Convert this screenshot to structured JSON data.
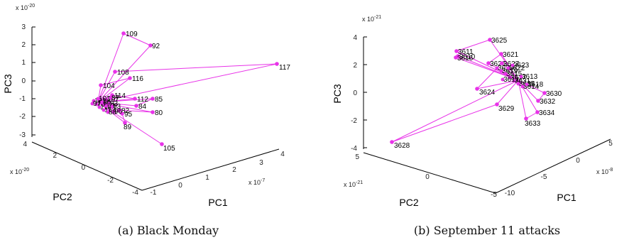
{
  "accent_color": "#e833e8",
  "chart_data": [
    {
      "type": "scatter",
      "projection": "3d",
      "caption": "(a) Black Monday",
      "xlabel": "PC1",
      "ylabel": "PC2",
      "zlabel": "PC3",
      "x_exponent_label": "x 10",
      "x_exponent_sup": "-7",
      "y_exponent_label": "x 10",
      "y_exponent_sup": "-20",
      "z_exponent_label": "x 10",
      "z_exponent_sup": "-20",
      "x_ticks": [
        "-1",
        "0",
        "1",
        "2",
        "3",
        "4"
      ],
      "y_ticks": [
        "-4",
        "-2",
        "0",
        "2",
        "4"
      ],
      "z_ticks": [
        "3",
        "2",
        "1",
        "0",
        "-1",
        "-2",
        "-3"
      ],
      "hub": "cluster",
      "points": [
        {
          "label": "109"
        },
        {
          "label": "92"
        },
        {
          "label": "117"
        },
        {
          "label": "108"
        },
        {
          "label": "116"
        },
        {
          "label": "104"
        },
        {
          "label": "114"
        },
        {
          "label": "112"
        },
        {
          "label": "85"
        },
        {
          "label": "84"
        },
        {
          "label": "82"
        },
        {
          "label": "80"
        },
        {
          "label": "95"
        },
        {
          "label": "89"
        },
        {
          "label": "105"
        }
      ],
      "cluster_labels": [
        "101",
        "106",
        "110",
        "113",
        "99",
        "83",
        "93",
        "96",
        "107",
        "103",
        "86",
        "88",
        "97",
        "87"
      ]
    },
    {
      "type": "scatter",
      "projection": "3d",
      "caption": "(b) September 11 attacks",
      "xlabel": "PC1",
      "ylabel": "PC2",
      "zlabel": "PC3",
      "x_exponent_label": "x 10",
      "x_exponent_sup": "-8",
      "y_exponent_label": "x 10",
      "y_exponent_sup": "-21",
      "z_exponent_label": "x 10",
      "z_exponent_sup": "-21",
      "x_ticks": [
        "-10",
        "-5",
        "0",
        "5"
      ],
      "y_ticks": [
        "5",
        "0",
        "-5"
      ],
      "z_ticks": [
        "4",
        "2",
        "0",
        "-2",
        "-4"
      ],
      "hub": "cluster",
      "points": [
        {
          "label": "3625"
        },
        {
          "label": "3611"
        },
        {
          "label": "3610"
        },
        {
          "label": "3616"
        },
        {
          "label": "3621"
        },
        {
          "label": "3626"
        },
        {
          "label": "3627"
        },
        {
          "label": "3624"
        },
        {
          "label": "3630"
        },
        {
          "label": "3632"
        },
        {
          "label": "3634"
        },
        {
          "label": "3633"
        },
        {
          "label": "3629"
        },
        {
          "label": "3628"
        }
      ],
      "cluster_labels": [
        "3620",
        "3619",
        "3615",
        "3617",
        "3631",
        "3635",
        "3614",
        "3618",
        "3622",
        "3623",
        "3612",
        "3613"
      ]
    }
  ]
}
